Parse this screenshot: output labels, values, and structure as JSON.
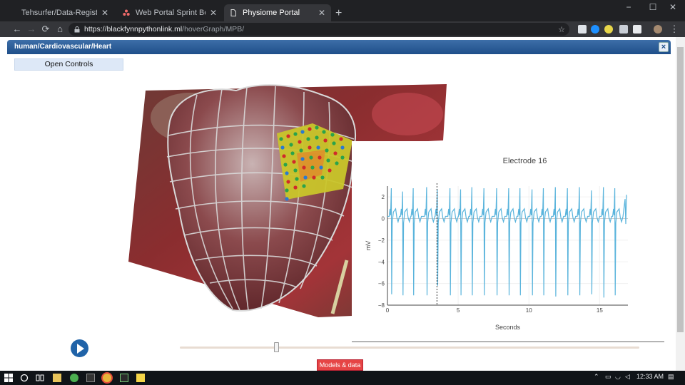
{
  "browser": {
    "tabs": [
      {
        "title": "Tehsurfer/Data-Registration-Port",
        "active": false,
        "icon": "github-icon"
      },
      {
        "title": "Web Portal Sprint Board - Create",
        "active": false,
        "icon": "asana-icon"
      },
      {
        "title": "Physiome Portal",
        "active": true,
        "icon": "page-icon"
      }
    ],
    "new_tab": "+",
    "url_host": "https://blackfynnpythonlink.ml",
    "url_path": "/hoverGraph/MPB/",
    "window_controls": [
      "−",
      "☐",
      "✕"
    ],
    "nav": {
      "back": "←",
      "forward": "→",
      "reload": "⟳",
      "home": "⌂"
    },
    "star": "☆"
  },
  "dialog": {
    "title": "human/Cardiovascular/Heart",
    "close": "×"
  },
  "controls": {
    "open_controls_label": "Open Controls"
  },
  "chart_data": {
    "type": "line",
    "title": "Electrode 16",
    "xlabel": "Seconds",
    "ylabel": "mV",
    "xlim": [
      0,
      17
    ],
    "ylim": [
      -8,
      3
    ],
    "x_ticks": [
      "0",
      "5",
      "10",
      "15"
    ],
    "y_ticks": [
      "2",
      "0",
      "−2",
      "−4",
      "−6",
      "−8"
    ],
    "cursor_x": 3.5,
    "series": [
      {
        "color": "#5ab4dc",
        "beat_times": [
          0.3,
          1.1,
          1.85,
          2.8,
          3.55,
          4.45,
          5.2,
          6.0,
          6.85,
          7.75,
          8.6,
          9.4,
          10.25,
          11.05,
          11.9,
          12.75,
          13.6,
          14.45,
          15.3,
          16.1
        ],
        "beat_troughs": [
          -7.0,
          -7.1,
          -7.1,
          -7.1,
          -6.2,
          -7.1,
          -7.1,
          -7.1,
          -7.1,
          -7.1,
          -7.1,
          -7.1,
          -7.1,
          -7.1,
          -7.2,
          -7.1,
          -7.1,
          -7.0,
          -7.3,
          -7.1
        ],
        "beat_peaks": [
          2.8,
          2.5,
          2.8,
          2.9,
          2.7,
          2.8,
          2.7,
          2.9,
          2.8,
          2.8,
          2.8,
          2.8,
          2.7,
          2.8,
          2.9,
          2.8,
          2.9,
          2.6,
          2.9,
          2.8
        ],
        "baseline": 0.2
      }
    ]
  },
  "playback": {
    "slider_value": 0.21
  },
  "models_button": "Models & data",
  "taskbar": {
    "time": "12:33 AM"
  },
  "colors": {
    "dialog_header": "#2b5d99",
    "models_button": "#e64545",
    "play_button": "#2063a8",
    "trace": "#5ab4dc"
  }
}
